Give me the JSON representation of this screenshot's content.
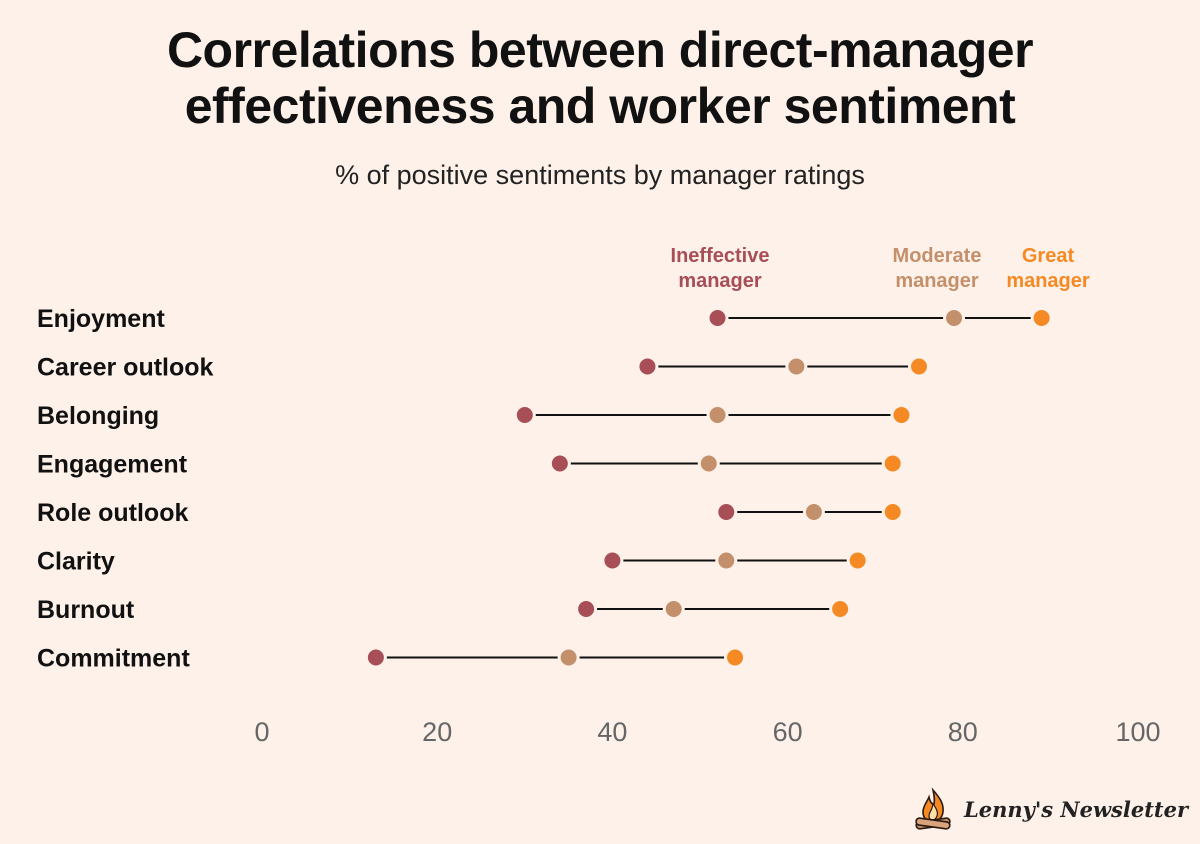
{
  "header": {
    "title_line1": "Correlations between direct-manager",
    "title_line2": "effectiveness and worker sentiment",
    "subtitle": "% of positive sentiments by manager ratings"
  },
  "legend": {
    "ineffective_line1": "Ineffective",
    "ineffective_line2": "manager",
    "moderate_line1": "Moderate",
    "moderate_line2": "manager",
    "great_line1": "Great",
    "great_line2": "manager"
  },
  "brand": {
    "name": "Lenny's Newsletter"
  },
  "colors": {
    "ineffective": "#a84e56",
    "moderate": "#c4906b",
    "great": "#f58a24",
    "line": "#111111",
    "background": "#fdf1e9"
  },
  "chart_data": {
    "type": "dumbbell",
    "title": "Correlations between direct-manager effectiveness and worker sentiment",
    "subtitle": "% of positive sentiments by manager ratings",
    "categories": [
      "Enjoyment",
      "Career outlook",
      "Belonging",
      "Engagement",
      "Role outlook",
      "Clarity",
      "Burnout",
      "Commitment"
    ],
    "series": [
      {
        "name": "Ineffective manager",
        "values": [
          52,
          44,
          30,
          34,
          53,
          40,
          37,
          13
        ]
      },
      {
        "name": "Moderate manager",
        "values": [
          79,
          61,
          52,
          51,
          63,
          53,
          47,
          35
        ]
      },
      {
        "name": "Great manager",
        "values": [
          89,
          75,
          73,
          72,
          72,
          68,
          66,
          54
        ]
      }
    ],
    "xlim": [
      0,
      100
    ],
    "xticks": [
      "0",
      "20",
      "40",
      "60",
      "80",
      "100"
    ],
    "xlabel": "",
    "ylabel": "",
    "grid": false,
    "legend": "top-right"
  }
}
